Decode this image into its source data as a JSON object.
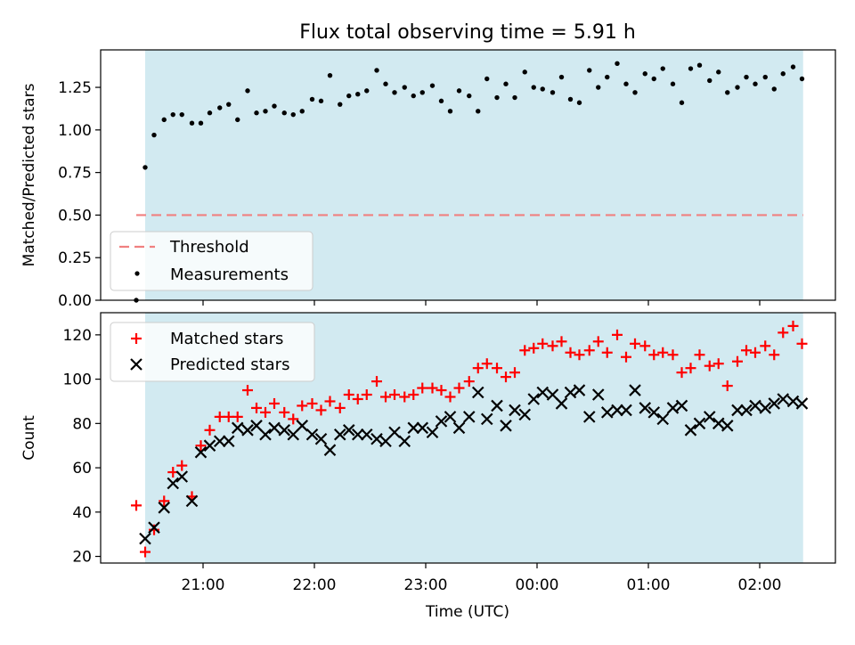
{
  "chart_data": {
    "title": "Flux total observing time = 5.91 h",
    "xlabel": "Time (UTC)",
    "x_unit": "hours UTC (values past 24 are after midnight)",
    "x_range": [
      20.08,
      26.68
    ],
    "x_ticks": [
      {
        "value": 21,
        "label": "21:00"
      },
      {
        "value": 22,
        "label": "22:00"
      },
      {
        "value": 23,
        "label": "23:00"
      },
      {
        "value": 24,
        "label": "00:00"
      },
      {
        "value": 25,
        "label": "01:00"
      },
      {
        "value": 26,
        "label": "02:00"
      }
    ],
    "observing_window": {
      "start": 20.48,
      "end": 26.39,
      "color": "#add8e6"
    },
    "panels": [
      {
        "type": "scatter",
        "ylabel": "Matched/Predicted stars",
        "ylim": [
          0,
          1.47
        ],
        "y_ticks": [
          "0.00",
          "0.25",
          "0.50",
          "0.75",
          "1.00",
          "1.25"
        ],
        "threshold": {
          "name": "Threshold",
          "value": 0.5,
          "x_start": 20.4,
          "x_end": 26.39,
          "color": "#f08080"
        },
        "series": [
          {
            "name": "Measurements",
            "color": "#000000",
            "marker": "dot",
            "x": [
              20.4,
              20.48,
              20.56,
              20.65,
              20.73,
              20.81,
              20.9,
              20.98,
              21.06,
              21.15,
              21.23,
              21.31,
              21.4,
              21.48,
              21.56,
              21.64,
              21.73,
              21.81,
              21.89,
              21.98,
              22.06,
              22.14,
              22.23,
              22.31,
              22.39,
              22.47,
              22.56,
              22.64,
              22.72,
              22.81,
              22.89,
              22.97,
              23.06,
              23.14,
              23.22,
              23.3,
              23.39,
              23.47,
              23.55,
              23.64,
              23.72,
              23.8,
              23.89,
              23.97,
              24.05,
              24.14,
              24.22,
              24.3,
              24.38,
              24.47,
              24.55,
              24.63,
              24.72,
              24.8,
              24.88,
              24.97,
              25.05,
              25.13,
              25.22,
              25.3,
              25.38,
              25.46,
              25.55,
              25.63,
              25.71,
              25.8,
              25.88,
              25.96,
              26.05,
              26.13,
              26.21,
              26.3,
              26.38
            ],
            "y": [
              0.0,
              0.78,
              0.97,
              1.06,
              1.09,
              1.09,
              1.04,
              1.04,
              1.1,
              1.13,
              1.15,
              1.06,
              1.23,
              1.1,
              1.11,
              1.14,
              1.1,
              1.09,
              1.11,
              1.18,
              1.17,
              1.32,
              1.15,
              1.2,
              1.21,
              1.23,
              1.35,
              1.27,
              1.22,
              1.25,
              1.2,
              1.22,
              1.26,
              1.17,
              1.11,
              1.23,
              1.2,
              1.11,
              1.3,
              1.19,
              1.27,
              1.19,
              1.34,
              1.25,
              1.24,
              1.22,
              1.31,
              1.18,
              1.16,
              1.35,
              1.25,
              1.31,
              1.39,
              1.27,
              1.22,
              1.33,
              1.3,
              1.36,
              1.27,
              1.16,
              1.36,
              1.38,
              1.29,
              1.34,
              1.22,
              1.25,
              1.31,
              1.27,
              1.31,
              1.24,
              1.33,
              1.37,
              1.3
            ]
          }
        ],
        "legend": {
          "position": "lower-left",
          "entries": [
            "Threshold",
            "Measurements"
          ]
        }
      },
      {
        "type": "scatter",
        "ylabel": "Count",
        "ylim": [
          17,
          130
        ],
        "y_ticks": [
          "20",
          "40",
          "60",
          "80",
          "100",
          "120"
        ],
        "series": [
          {
            "name": "Matched stars",
            "color": "#ff0000",
            "marker": "plus",
            "x": [
              20.4,
              20.48,
              20.56,
              20.65,
              20.73,
              20.81,
              20.9,
              20.98,
              21.06,
              21.15,
              21.23,
              21.31,
              21.4,
              21.48,
              21.56,
              21.64,
              21.73,
              21.81,
              21.89,
              21.98,
              22.06,
              22.14,
              22.23,
              22.31,
              22.39,
              22.47,
              22.56,
              22.64,
              22.72,
              22.81,
              22.89,
              22.97,
              23.06,
              23.14,
              23.22,
              23.3,
              23.39,
              23.47,
              23.55,
              23.64,
              23.72,
              23.8,
              23.89,
              23.97,
              24.05,
              24.14,
              24.22,
              24.3,
              24.38,
              24.47,
              24.55,
              24.63,
              24.72,
              24.8,
              24.88,
              24.97,
              25.05,
              25.13,
              25.22,
              25.3,
              25.38,
              25.46,
              25.55,
              25.63,
              25.71,
              25.8,
              25.88,
              25.96,
              26.05,
              26.13,
              26.21,
              26.3,
              26.38
            ],
            "y": [
              43,
              22,
              32,
              45,
              58,
              61,
              47,
              70,
              77,
              83,
              83,
              83,
              95,
              87,
              85,
              89,
              85,
              82,
              88,
              89,
              86,
              90,
              87,
              93,
              91,
              93,
              99,
              92,
              93,
              92,
              93,
              96,
              96,
              95,
              92,
              96,
              99,
              105,
              107,
              105,
              101,
              103,
              113,
              114,
              116,
              115,
              117,
              112,
              111,
              113,
              117,
              112,
              120,
              110,
              116,
              115,
              111,
              112,
              111,
              103,
              105,
              111,
              106,
              107,
              97,
              108,
              113,
              112,
              115,
              111,
              121,
              124,
              116
            ]
          },
          {
            "name": "Predicted stars",
            "color": "#000000",
            "marker": "cross",
            "x": [
              20.48,
              20.56,
              20.65,
              20.73,
              20.81,
              20.9,
              20.98,
              21.06,
              21.15,
              21.23,
              21.31,
              21.4,
              21.48,
              21.56,
              21.64,
              21.73,
              21.81,
              21.89,
              21.98,
              22.06,
              22.14,
              22.23,
              22.31,
              22.39,
              22.47,
              22.56,
              22.64,
              22.72,
              22.81,
              22.89,
              22.97,
              23.06,
              23.14,
              23.22,
              23.3,
              23.39,
              23.47,
              23.55,
              23.64,
              23.72,
              23.8,
              23.89,
              23.97,
              24.05,
              24.14,
              24.22,
              24.3,
              24.38,
              24.47,
              24.55,
              24.63,
              24.72,
              24.8,
              24.88,
              24.97,
              25.05,
              25.13,
              25.22,
              25.3,
              25.38,
              25.46,
              25.55,
              25.63,
              25.71,
              25.8,
              25.88,
              25.96,
              26.05,
              26.13,
              26.21,
              26.3,
              26.38
            ],
            "y": [
              28,
              33,
              42,
              53,
              56,
              45,
              67,
              70,
              72,
              72,
              78,
              77,
              79,
              75,
              78,
              77,
              75,
              79,
              75,
              73,
              68,
              75,
              77,
              75,
              75,
              73,
              72,
              76,
              72,
              78,
              78,
              76,
              81,
              83,
              78,
              83,
              94,
              82,
              88,
              79,
              86,
              84,
              91,
              94,
              93,
              89,
              94,
              95,
              83,
              93,
              85,
              86,
              86,
              95,
              87,
              85,
              82,
              87,
              88,
              77,
              80,
              83,
              80,
              79,
              86,
              86,
              88,
              87,
              89,
              91,
              90,
              89
            ]
          }
        ],
        "legend": {
          "position": "upper-left",
          "entries": [
            "Matched stars",
            "Predicted stars"
          ]
        }
      }
    ]
  }
}
